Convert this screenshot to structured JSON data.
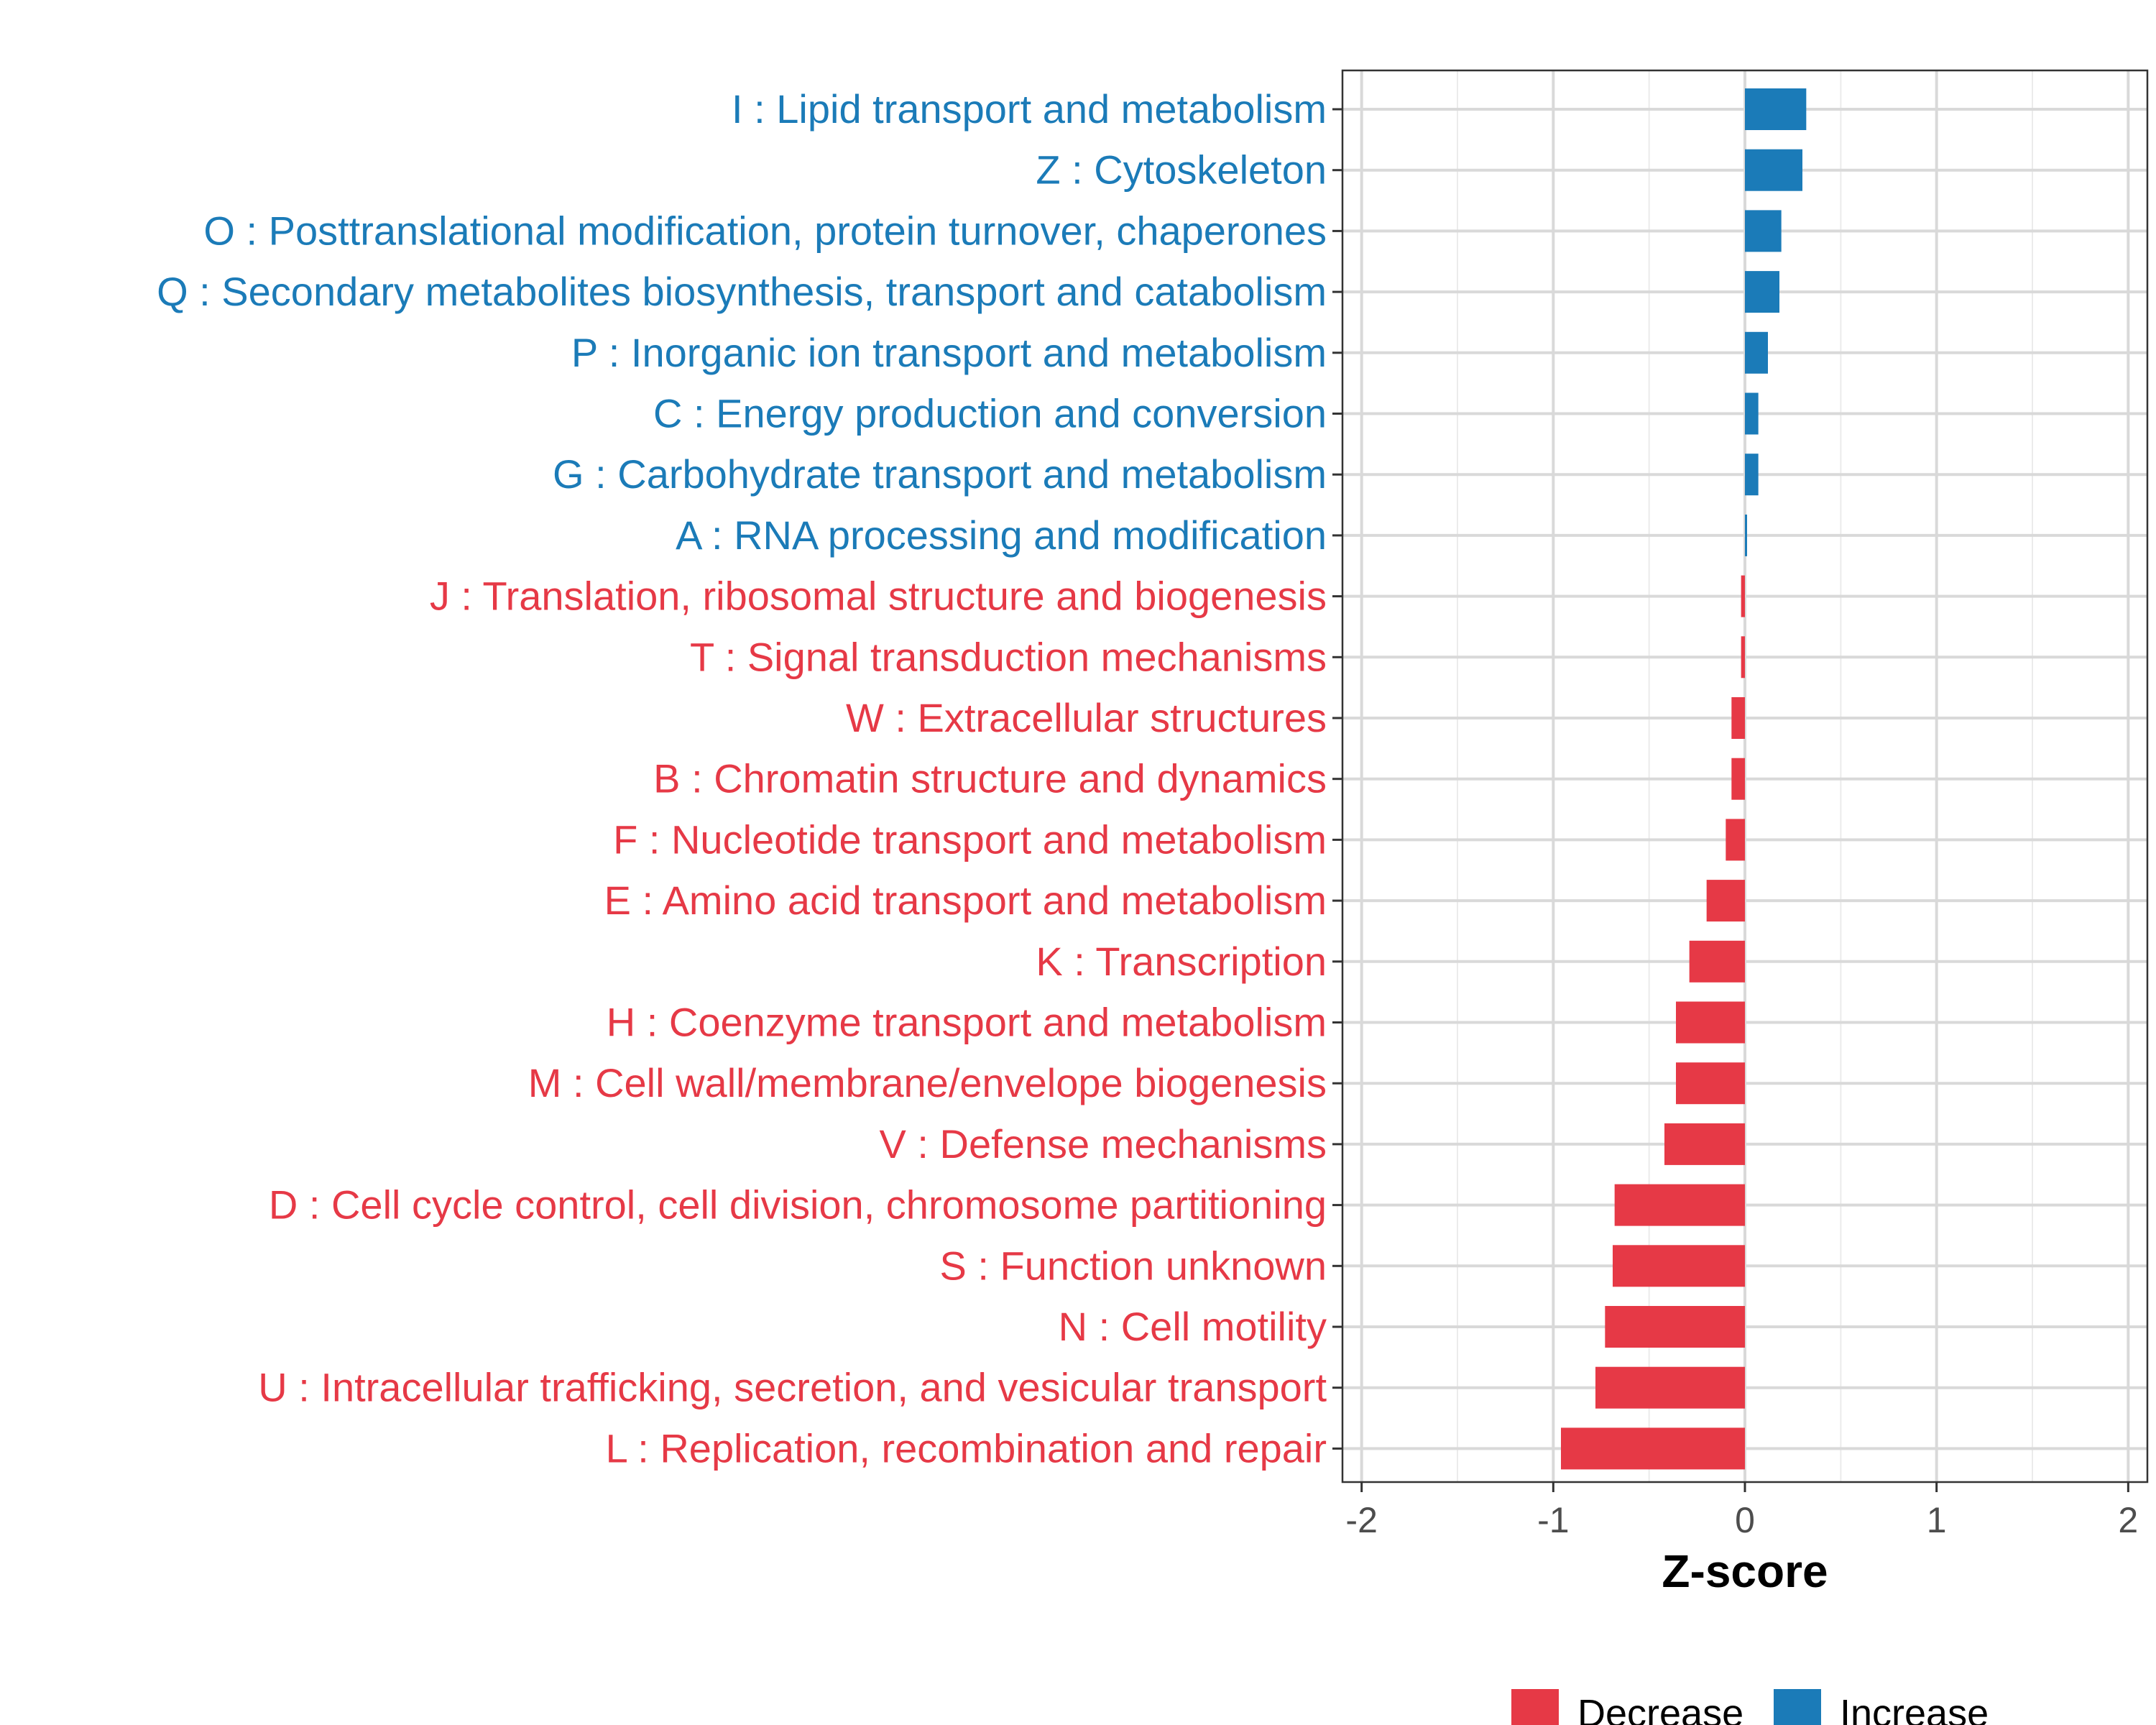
{
  "chart_data": {
    "type": "bar",
    "orientation": "horizontal",
    "xlabel": "Z-score",
    "ylabel": "",
    "xlim": [
      -2.1,
      2.1
    ],
    "x_ticks": [
      -2,
      -1,
      0,
      1,
      2
    ],
    "x_tick_labels": [
      "-2",
      "-1",
      "0",
      "1",
      "2"
    ],
    "grid": true,
    "colors": {
      "Decrease": "#e63946",
      "Increase": "#1b7bb8"
    },
    "legend": {
      "position": "bottom",
      "entries": [
        "Decrease",
        "Increase"
      ]
    },
    "categories": [
      "I : Lipid transport and metabolism",
      "Z : Cytoskeleton",
      "O : Posttranslational modification, protein turnover, chaperones",
      "Q : Secondary metabolites biosynthesis, transport and catabolism",
      "P : Inorganic ion transport and metabolism",
      "C : Energy production and conversion",
      "G : Carbohydrate transport and metabolism",
      "A : RNA processing and modification",
      "J : Translation, ribosomal structure and biogenesis",
      "T : Signal transduction mechanisms",
      "W : Extracellular structures",
      "B : Chromatin structure and dynamics",
      "F : Nucleotide transport and metabolism",
      "E : Amino acid transport and metabolism",
      "K : Transcription",
      "H : Coenzyme transport and metabolism",
      "M : Cell wall/membrane/envelope biogenesis",
      "V : Defense mechanisms",
      "D : Cell cycle control, cell division, chromosome partitioning",
      "S : Function unknown",
      "N : Cell motility",
      "U : Intracellular trafficking, secretion, and vesicular transport",
      "L : Replication, recombination and repair"
    ],
    "values": [
      0.32,
      0.3,
      0.19,
      0.18,
      0.12,
      0.07,
      0.07,
      0.01,
      -0.02,
      -0.02,
      -0.07,
      -0.07,
      -0.1,
      -0.2,
      -0.29,
      -0.36,
      -0.36,
      -0.42,
      -0.68,
      -0.69,
      -0.73,
      -0.78,
      -0.96
    ],
    "groups": [
      "Increase",
      "Increase",
      "Increase",
      "Increase",
      "Increase",
      "Increase",
      "Increase",
      "Increase",
      "Decrease",
      "Decrease",
      "Decrease",
      "Decrease",
      "Decrease",
      "Decrease",
      "Decrease",
      "Decrease",
      "Decrease",
      "Decrease",
      "Decrease",
      "Decrease",
      "Decrease",
      "Decrease",
      "Decrease"
    ]
  }
}
